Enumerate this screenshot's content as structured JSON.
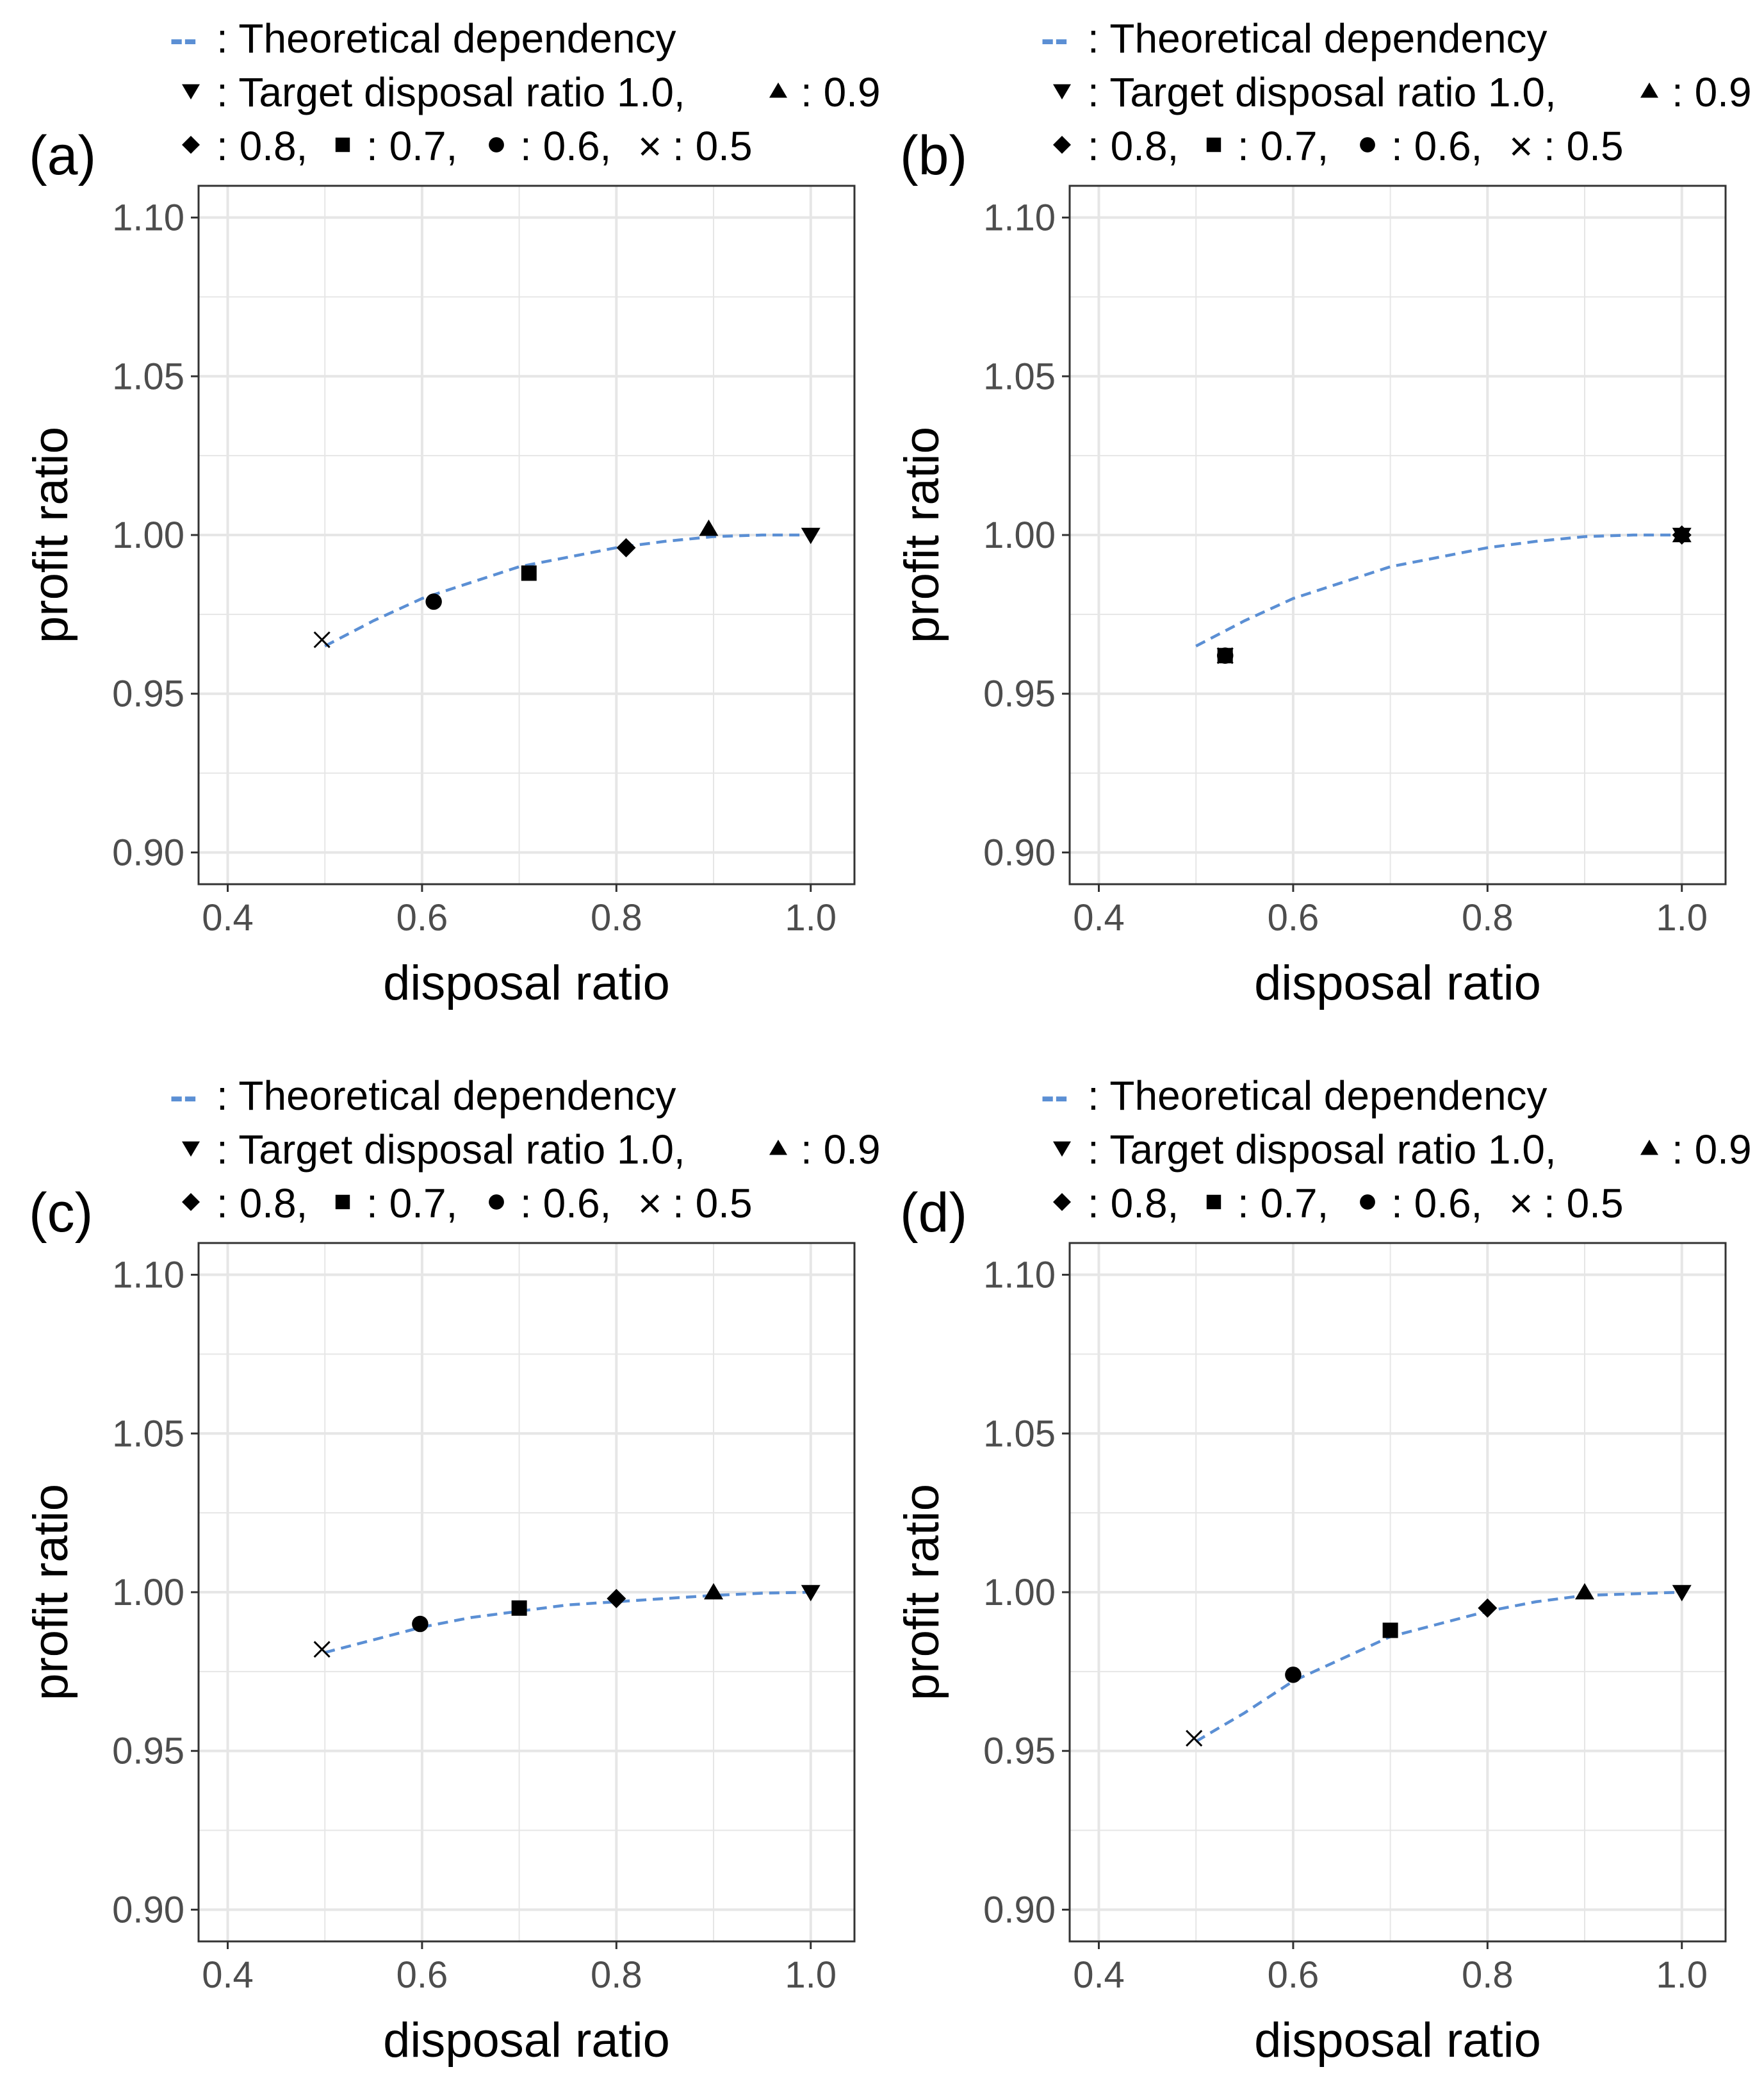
{
  "legend": {
    "line_symbol": "--",
    "line_text": ": Theoretical dependency",
    "row2_prefix": ": Target disposal ratio 1.0,",
    "row2_suffix": ": 0.9",
    "row3_a": ": 0.8,",
    "row3_b": ": 0.7,",
    "row3_c": ": 0.6,",
    "row3_d": ": 0.5",
    "symbols": [
      "triangle-down",
      "triangle-up",
      "diamond",
      "square",
      "circle",
      "cross"
    ]
  },
  "colors": {
    "theory_line": "#5b8fd4",
    "grid": "#e6e6e6",
    "tick_label": "#4d4d4d",
    "marker": "#000000"
  },
  "chart_data": [
    {
      "panel": "(a)",
      "type": "scatter",
      "xlabel": "disposal ratio",
      "ylabel": "profit ratio",
      "xlim": [
        0.37,
        1.045
      ],
      "ylim": [
        0.89,
        1.11
      ],
      "xticks": [
        "0.4",
        "0.6",
        "0.8",
        "1.0"
      ],
      "yticks": [
        "0.90",
        "0.95",
        "1.00",
        "1.05",
        "1.10"
      ],
      "grid": true,
      "theory": {
        "x": [
          0.5,
          0.55,
          0.6,
          0.65,
          0.7,
          0.75,
          0.8,
          0.85,
          0.9,
          0.95,
          1.0
        ],
        "y": [
          0.965,
          0.973,
          0.98,
          0.985,
          0.99,
          0.993,
          0.996,
          0.998,
          0.9995,
          1.0,
          1.0
        ]
      },
      "points": [
        {
          "target": 1.0,
          "marker": "triangle-down",
          "x": 1.0,
          "y": 1.0
        },
        {
          "target": 0.9,
          "marker": "triangle-up",
          "x": 0.895,
          "y": 1.002
        },
        {
          "target": 0.8,
          "marker": "diamond",
          "x": 0.81,
          "y": 0.996
        },
        {
          "target": 0.7,
          "marker": "square",
          "x": 0.71,
          "y": 0.988
        },
        {
          "target": 0.6,
          "marker": "circle",
          "x": 0.612,
          "y": 0.979
        },
        {
          "target": 0.5,
          "marker": "cross",
          "x": 0.497,
          "y": 0.967
        }
      ]
    },
    {
      "panel": "(b)",
      "type": "scatter",
      "xlabel": "disposal ratio",
      "ylabel": "profit ratio",
      "xlim": [
        0.37,
        1.045
      ],
      "ylim": [
        0.89,
        1.11
      ],
      "xticks": [
        "0.4",
        "0.6",
        "0.8",
        "1.0"
      ],
      "yticks": [
        "0.90",
        "0.95",
        "1.00",
        "1.05",
        "1.10"
      ],
      "grid": true,
      "theory": {
        "x": [
          0.5,
          0.55,
          0.6,
          0.65,
          0.7,
          0.75,
          0.8,
          0.85,
          0.9,
          0.95,
          1.0
        ],
        "y": [
          0.965,
          0.973,
          0.98,
          0.985,
          0.99,
          0.993,
          0.996,
          0.998,
          0.9995,
          1.0,
          1.0
        ]
      },
      "points": [
        {
          "target": 1.0,
          "marker": "triangle-down",
          "x": 1.0,
          "y": 1.0
        },
        {
          "target": 0.9,
          "marker": "triangle-up",
          "x": 1.0,
          "y": 1.0
        },
        {
          "target": 0.8,
          "marker": "diamond",
          "x": 1.0,
          "y": 1.0
        },
        {
          "target": 0.7,
          "marker": "square",
          "x": 0.53,
          "y": 0.962
        },
        {
          "target": 0.6,
          "marker": "circle",
          "x": 0.53,
          "y": 0.962
        },
        {
          "target": 0.5,
          "marker": "cross",
          "x": 0.53,
          "y": 0.962
        }
      ]
    },
    {
      "panel": "(c)",
      "type": "scatter",
      "xlabel": "disposal ratio",
      "ylabel": "profit ratio",
      "xlim": [
        0.37,
        1.045
      ],
      "ylim": [
        0.89,
        1.11
      ],
      "xticks": [
        "0.4",
        "0.6",
        "0.8",
        "1.0"
      ],
      "yticks": [
        "0.90",
        "0.95",
        "1.00",
        "1.05",
        "1.10"
      ],
      "grid": true,
      "theory": {
        "x": [
          0.5,
          0.55,
          0.6,
          0.65,
          0.7,
          0.75,
          0.8,
          0.85,
          0.9,
          0.95,
          1.0
        ],
        "y": [
          0.981,
          0.985,
          0.989,
          0.992,
          0.994,
          0.996,
          0.997,
          0.998,
          0.999,
          0.9997,
          1.0
        ]
      },
      "points": [
        {
          "target": 1.0,
          "marker": "triangle-down",
          "x": 1.0,
          "y": 1.0
        },
        {
          "target": 0.9,
          "marker": "triangle-up",
          "x": 0.9,
          "y": 1.0
        },
        {
          "target": 0.8,
          "marker": "diamond",
          "x": 0.8,
          "y": 0.998
        },
        {
          "target": 0.7,
          "marker": "square",
          "x": 0.7,
          "y": 0.995
        },
        {
          "target": 0.6,
          "marker": "circle",
          "x": 0.598,
          "y": 0.99
        },
        {
          "target": 0.5,
          "marker": "cross",
          "x": 0.497,
          "y": 0.982
        }
      ]
    },
    {
      "panel": "(d)",
      "type": "scatter",
      "xlabel": "disposal ratio",
      "ylabel": "profit ratio",
      "xlim": [
        0.37,
        1.045
      ],
      "ylim": [
        0.89,
        1.11
      ],
      "xticks": [
        "0.4",
        "0.6",
        "0.8",
        "1.0"
      ],
      "yticks": [
        "0.90",
        "0.95",
        "1.00",
        "1.05",
        "1.10"
      ],
      "grid": true,
      "theory": {
        "x": [
          0.5,
          0.55,
          0.6,
          0.65,
          0.7,
          0.75,
          0.8,
          0.85,
          0.9,
          0.95,
          1.0
        ],
        "y": [
          0.953,
          0.962,
          0.972,
          0.979,
          0.986,
          0.99,
          0.994,
          0.997,
          0.999,
          0.9995,
          1.0
        ]
      },
      "points": [
        {
          "target": 1.0,
          "marker": "triangle-down",
          "x": 1.0,
          "y": 1.0
        },
        {
          "target": 0.9,
          "marker": "triangle-up",
          "x": 0.9,
          "y": 1.0
        },
        {
          "target": 0.8,
          "marker": "diamond",
          "x": 0.8,
          "y": 0.995
        },
        {
          "target": 0.7,
          "marker": "square",
          "x": 0.7,
          "y": 0.988
        },
        {
          "target": 0.6,
          "marker": "circle",
          "x": 0.6,
          "y": 0.974
        },
        {
          "target": 0.5,
          "marker": "cross",
          "x": 0.498,
          "y": 0.954
        }
      ]
    }
  ]
}
